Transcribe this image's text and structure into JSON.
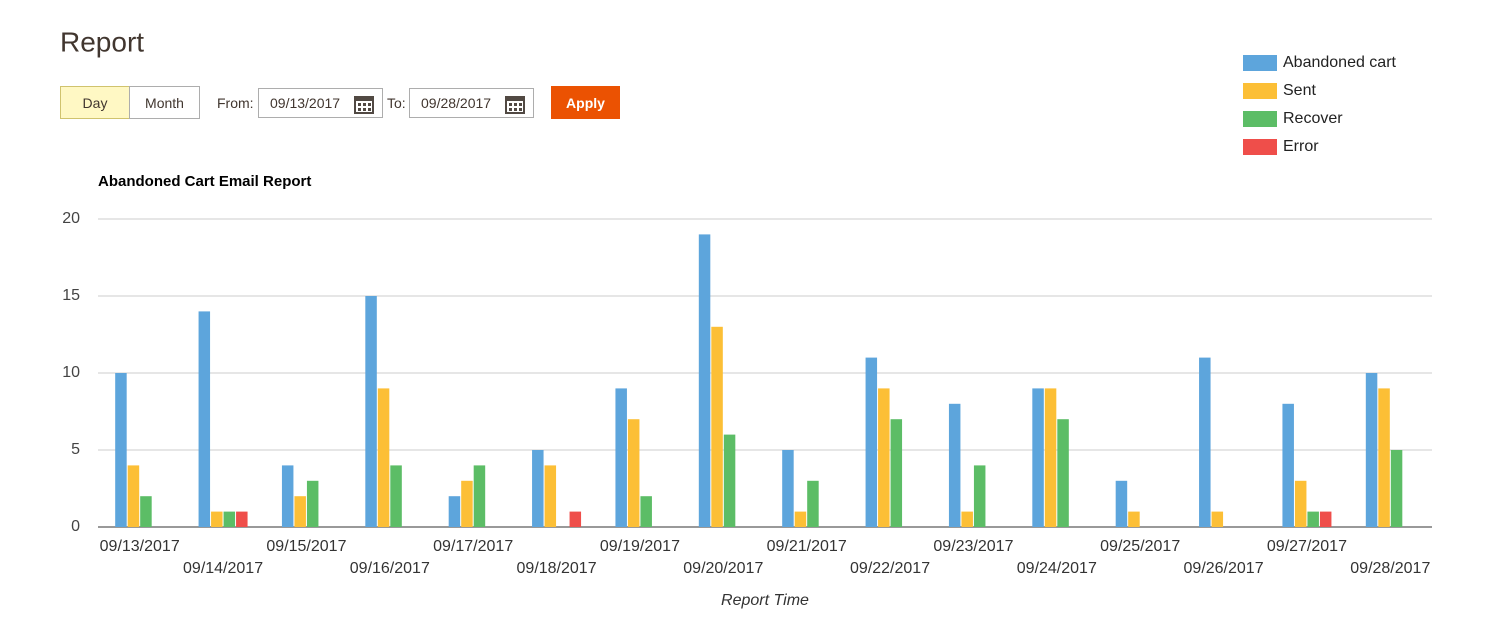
{
  "header": {
    "title": "Report"
  },
  "controls": {
    "period_buttons": [
      "Day",
      "Month"
    ],
    "from_label": "From:",
    "from_date": "09/13/2017",
    "to_label": "To:",
    "to_date": "09/28/2017",
    "apply": "Apply"
  },
  "chart_data": {
    "type": "bar",
    "title": "Abandoned Cart Email Report",
    "xlabel": "Report Time",
    "categories": [
      "09/13/2017",
      "09/14/2017",
      "09/15/2017",
      "09/16/2017",
      "09/17/2017",
      "09/18/2017",
      "09/19/2017",
      "09/20/2017",
      "09/21/2017",
      "09/22/2017",
      "09/23/2017",
      "09/24/2017",
      "09/25/2017",
      "09/26/2017",
      "09/27/2017",
      "09/28/2017"
    ],
    "series": [
      {
        "name": "Abandoned cart",
        "color": "#5da5dc",
        "values": [
          10,
          14,
          4,
          15,
          2,
          5,
          9,
          19,
          5,
          11,
          8,
          9,
          3,
          11,
          8,
          10
        ]
      },
      {
        "name": "Sent",
        "color": "#fcbf36",
        "values": [
          4,
          1,
          2,
          9,
          3,
          4,
          7,
          13,
          1,
          9,
          1,
          9,
          1,
          1,
          3,
          9
        ]
      },
      {
        "name": "Recover",
        "color": "#5cbd66",
        "values": [
          2,
          1,
          3,
          4,
          4,
          0,
          2,
          6,
          3,
          7,
          4,
          7,
          0,
          0,
          1,
          5
        ]
      },
      {
        "name": "Error",
        "color": "#ef4e4a",
        "values": [
          0,
          1,
          0,
          0,
          0,
          1,
          0,
          0,
          0,
          0,
          0,
          0,
          0,
          0,
          1,
          0
        ]
      }
    ],
    "ylim": [
      0,
      20
    ],
    "yticks": [
      0,
      5,
      10,
      15,
      20
    ],
    "grid": true,
    "legend": "top-right"
  }
}
